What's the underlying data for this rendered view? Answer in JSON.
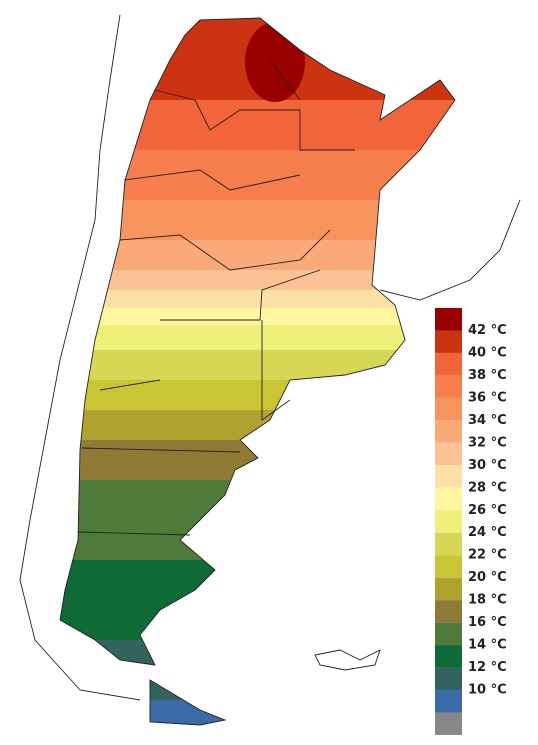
{
  "legend": {
    "colors": [
      "#990000",
      "#cc3311",
      "#f2643a",
      "#f57e4c",
      "#f8945e",
      "#f9aa78",
      "#fbc395",
      "#fde0a6",
      "#fff7a0",
      "#eef07a",
      "#d6d855",
      "#c9c535",
      "#b0a22e",
      "#8f7a35",
      "#4f7a3a",
      "#0e6b36",
      "#34625f",
      "#3a6aa8",
      "#888888"
    ],
    "labels": [
      "42 °C",
      "40 °C",
      "38 °C",
      "36 °C",
      "34 °C",
      "32 °C",
      "30 °C",
      "28 °C",
      "26 °C",
      "24 °C",
      "22 °C",
      "20 °C",
      "18 °C",
      "16 °C",
      "14 °C",
      "12 °C",
      "10 °C"
    ]
  }
}
